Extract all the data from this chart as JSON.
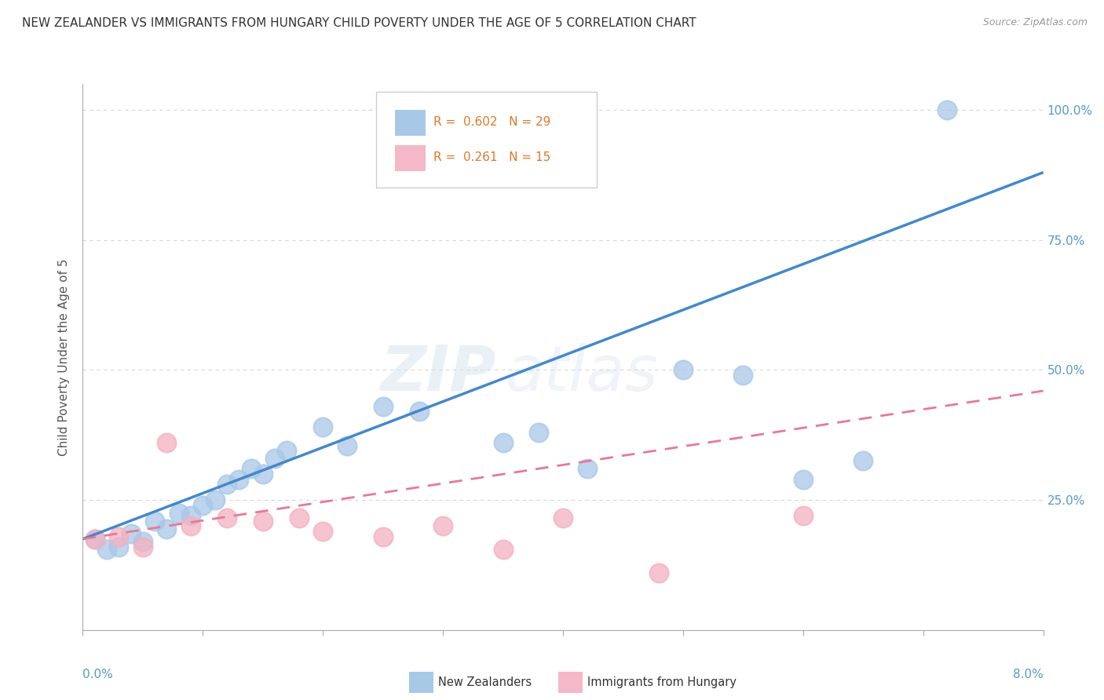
{
  "title": "NEW ZEALANDER VS IMMIGRANTS FROM HUNGARY CHILD POVERTY UNDER THE AGE OF 5 CORRELATION CHART",
  "source": "Source: ZipAtlas.com",
  "ylabel": "Child Poverty Under the Age of 5",
  "legend_color1": "#a8c8e8",
  "legend_color2": "#f4b8c8",
  "watermark": "ZIPatlas",
  "blue_scatter_color": "#a8c8e8",
  "pink_scatter_color": "#f4b0c0",
  "blue_line_color": "#4488cc",
  "pink_line_color": "#e87898",
  "nz_points_x": [
    0.001,
    0.002,
    0.003,
    0.004,
    0.005,
    0.006,
    0.007,
    0.008,
    0.009,
    0.01,
    0.011,
    0.012,
    0.013,
    0.014,
    0.015,
    0.016,
    0.017,
    0.02,
    0.022,
    0.025,
    0.028,
    0.035,
    0.038,
    0.042,
    0.05,
    0.055,
    0.06,
    0.065,
    0.072
  ],
  "nz_points_y": [
    0.175,
    0.155,
    0.16,
    0.185,
    0.17,
    0.21,
    0.195,
    0.225,
    0.22,
    0.24,
    0.25,
    0.28,
    0.29,
    0.31,
    0.3,
    0.33,
    0.345,
    0.39,
    0.355,
    0.43,
    0.42,
    0.36,
    0.38,
    0.31,
    0.5,
    0.49,
    0.29,
    0.325,
    1.0
  ],
  "hu_points_x": [
    0.001,
    0.003,
    0.005,
    0.007,
    0.009,
    0.012,
    0.015,
    0.018,
    0.02,
    0.025,
    0.03,
    0.035,
    0.04,
    0.048,
    0.06
  ],
  "hu_points_y": [
    0.175,
    0.18,
    0.16,
    0.36,
    0.2,
    0.215,
    0.21,
    0.215,
    0.19,
    0.18,
    0.2,
    0.155,
    0.215,
    0.11,
    0.22
  ],
  "xlim": [
    0.0,
    0.08
  ],
  "ylim": [
    0.0,
    1.05
  ],
  "nz_line_x": [
    0.0,
    0.08
  ],
  "nz_line_y": [
    0.175,
    0.88
  ],
  "hu_line_x": [
    0.0,
    0.08
  ],
  "hu_line_y": [
    0.175,
    0.46
  ],
  "background_color": "#ffffff",
  "grid_color": "#cccccc",
  "title_fontsize": 11,
  "source_fontsize": 9,
  "tick_color": "#5599cc",
  "ylabel_color": "#555555"
}
